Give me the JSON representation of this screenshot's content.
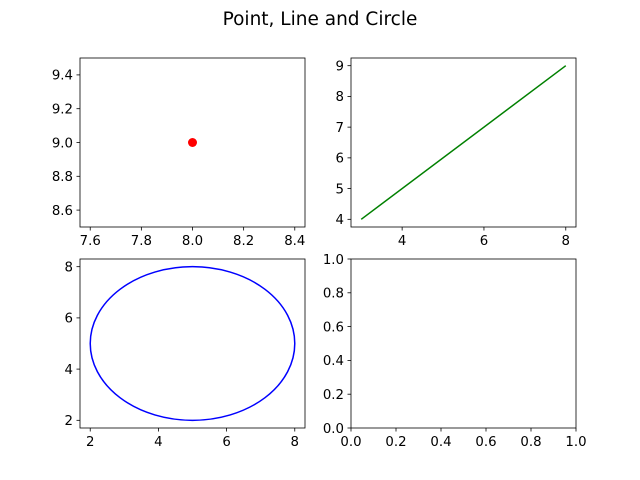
{
  "chart_data": [
    {
      "type": "scatter",
      "panel": "top-left",
      "series": [
        {
          "x": [
            8.0
          ],
          "y": [
            9.0
          ],
          "color": "#ff0000",
          "marker": "circle"
        }
      ],
      "xlim": [
        7.56,
        8.44
      ],
      "ylim": [
        8.5,
        9.5
      ],
      "xticks": [
        7.6,
        7.8,
        8.0,
        8.2,
        8.4
      ],
      "yticks": [
        8.6,
        8.8,
        9.0,
        9.2,
        9.4
      ],
      "grid": false
    },
    {
      "type": "line",
      "panel": "top-right",
      "series": [
        {
          "x": [
            3,
            8
          ],
          "y": [
            4,
            9
          ],
          "color": "#008000"
        }
      ],
      "xlim": [
        2.75,
        8.25
      ],
      "ylim": [
        3.75,
        9.25
      ],
      "xticks": [
        4,
        6,
        8
      ],
      "yticks": [
        4,
        5,
        6,
        7,
        8,
        9
      ],
      "grid": false
    },
    {
      "type": "line",
      "panel": "bottom-left",
      "series": [
        {
          "shape": "ellipse",
          "center": [
            5,
            5
          ],
          "radius": 3,
          "color": "#0000ff"
        }
      ],
      "xlim": [
        1.7,
        8.3
      ],
      "ylim": [
        1.7,
        8.3
      ],
      "xticks": [
        2,
        4,
        6,
        8
      ],
      "yticks": [
        2,
        4,
        6,
        8
      ],
      "grid": false
    },
    {
      "type": "line",
      "panel": "bottom-right",
      "series": [],
      "xlim": [
        0,
        1
      ],
      "ylim": [
        0,
        1
      ],
      "xticks": [
        0.0,
        0.2,
        0.4,
        0.6,
        0.8,
        1.0
      ],
      "yticks": [
        0.0,
        0.2,
        0.4,
        0.6,
        0.8,
        1.0
      ],
      "grid": false
    }
  ],
  "figure": {
    "title": "Point, Line and Circle"
  }
}
